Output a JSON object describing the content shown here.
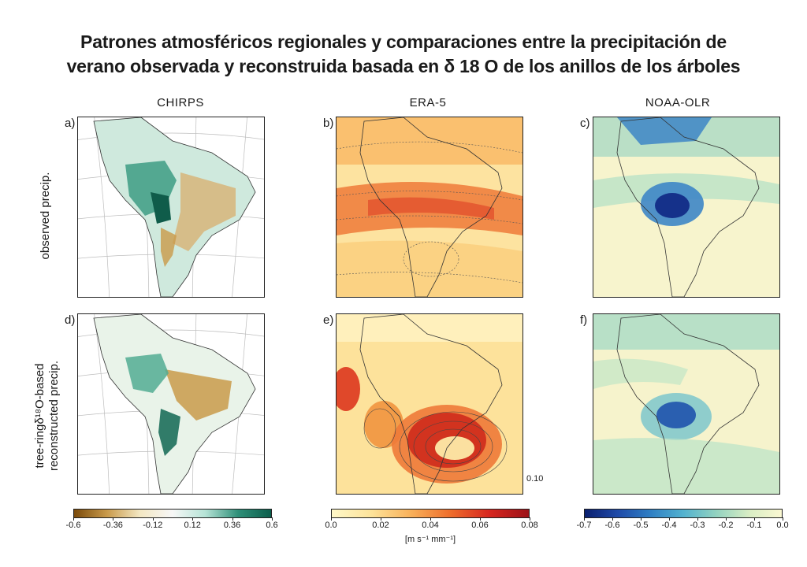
{
  "title_line1": "Patrones atmosféricos regionales y comparaciones entre la precipitación de",
  "title_line2": "verano observada y reconstruida basada en δ 18 O de los anillos de los árboles",
  "columns": [
    "CHIRPS",
    "ERA-5",
    "NOAA-OLR"
  ],
  "rows": {
    "row1": "observed precip.",
    "row2_line1": "tree-ringδ¹⁸O-based",
    "row2_line2": "reconstructed precip."
  },
  "panels": [
    "a)",
    "b)",
    "c)",
    "d)",
    "e)",
    "f)"
  ],
  "reference_vector": "0.10",
  "colorbars": {
    "chirps": {
      "ticks": [
        "-0.6",
        "-0.36",
        "-0.12",
        "0.12",
        "0.36",
        "0.6"
      ],
      "colors": [
        "#7a4a0a",
        "#c99a4a",
        "#f3e7c2",
        "#f7f7f7",
        "#b5e3d6",
        "#2e8f78",
        "#0c5e4c"
      ]
    },
    "era5": {
      "ticks": [
        "0.0",
        "0.02",
        "0.04",
        "0.06",
        "0.08"
      ],
      "units": "[m s⁻¹ mm⁻¹]",
      "colors": [
        "#fff8c8",
        "#fde39a",
        "#f9b15a",
        "#ee6e2c",
        "#d7261f",
        "#9c1117"
      ]
    },
    "olr": {
      "ticks": [
        "-0.7",
        "-0.6",
        "-0.5",
        "-0.4",
        "-0.3",
        "-0.2",
        "-0.1",
        "0.0"
      ],
      "colors": [
        "#0a1f6f",
        "#1f4aa8",
        "#2f7fc4",
        "#52b2cf",
        "#92d2c0",
        "#d8edc4",
        "#fbf8d2"
      ]
    }
  }
}
